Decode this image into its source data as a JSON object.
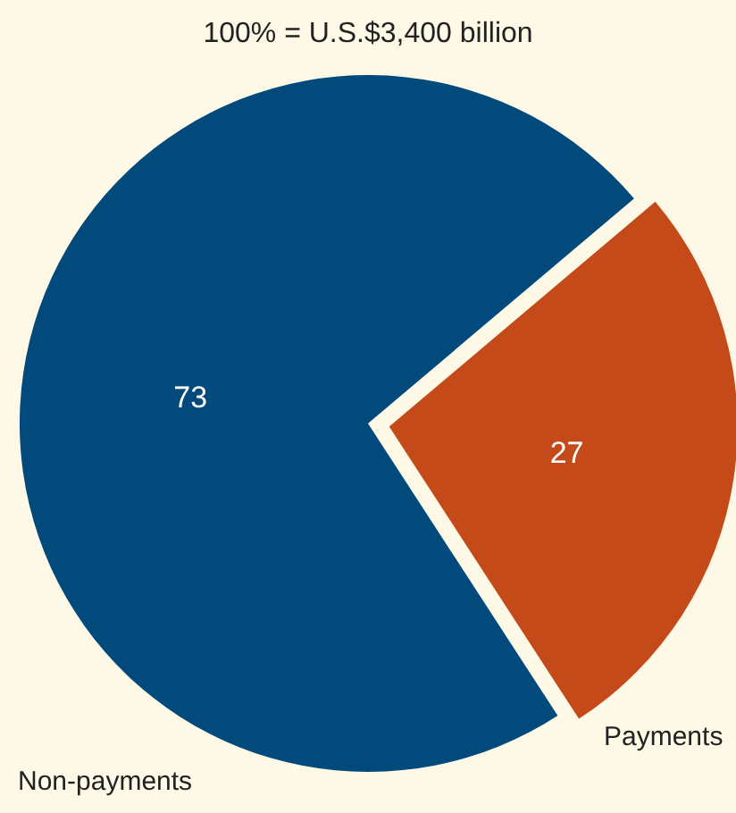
{
  "chart_data": {
    "type": "pie",
    "title": "100% = U.S.$3,400 billion",
    "categories": [
      "Non-payments",
      "Payments"
    ],
    "values": [
      73,
      27
    ],
    "colors": [
      "#034a7c",
      "#c54a19"
    ],
    "data_labels": true,
    "legend": false
  }
}
